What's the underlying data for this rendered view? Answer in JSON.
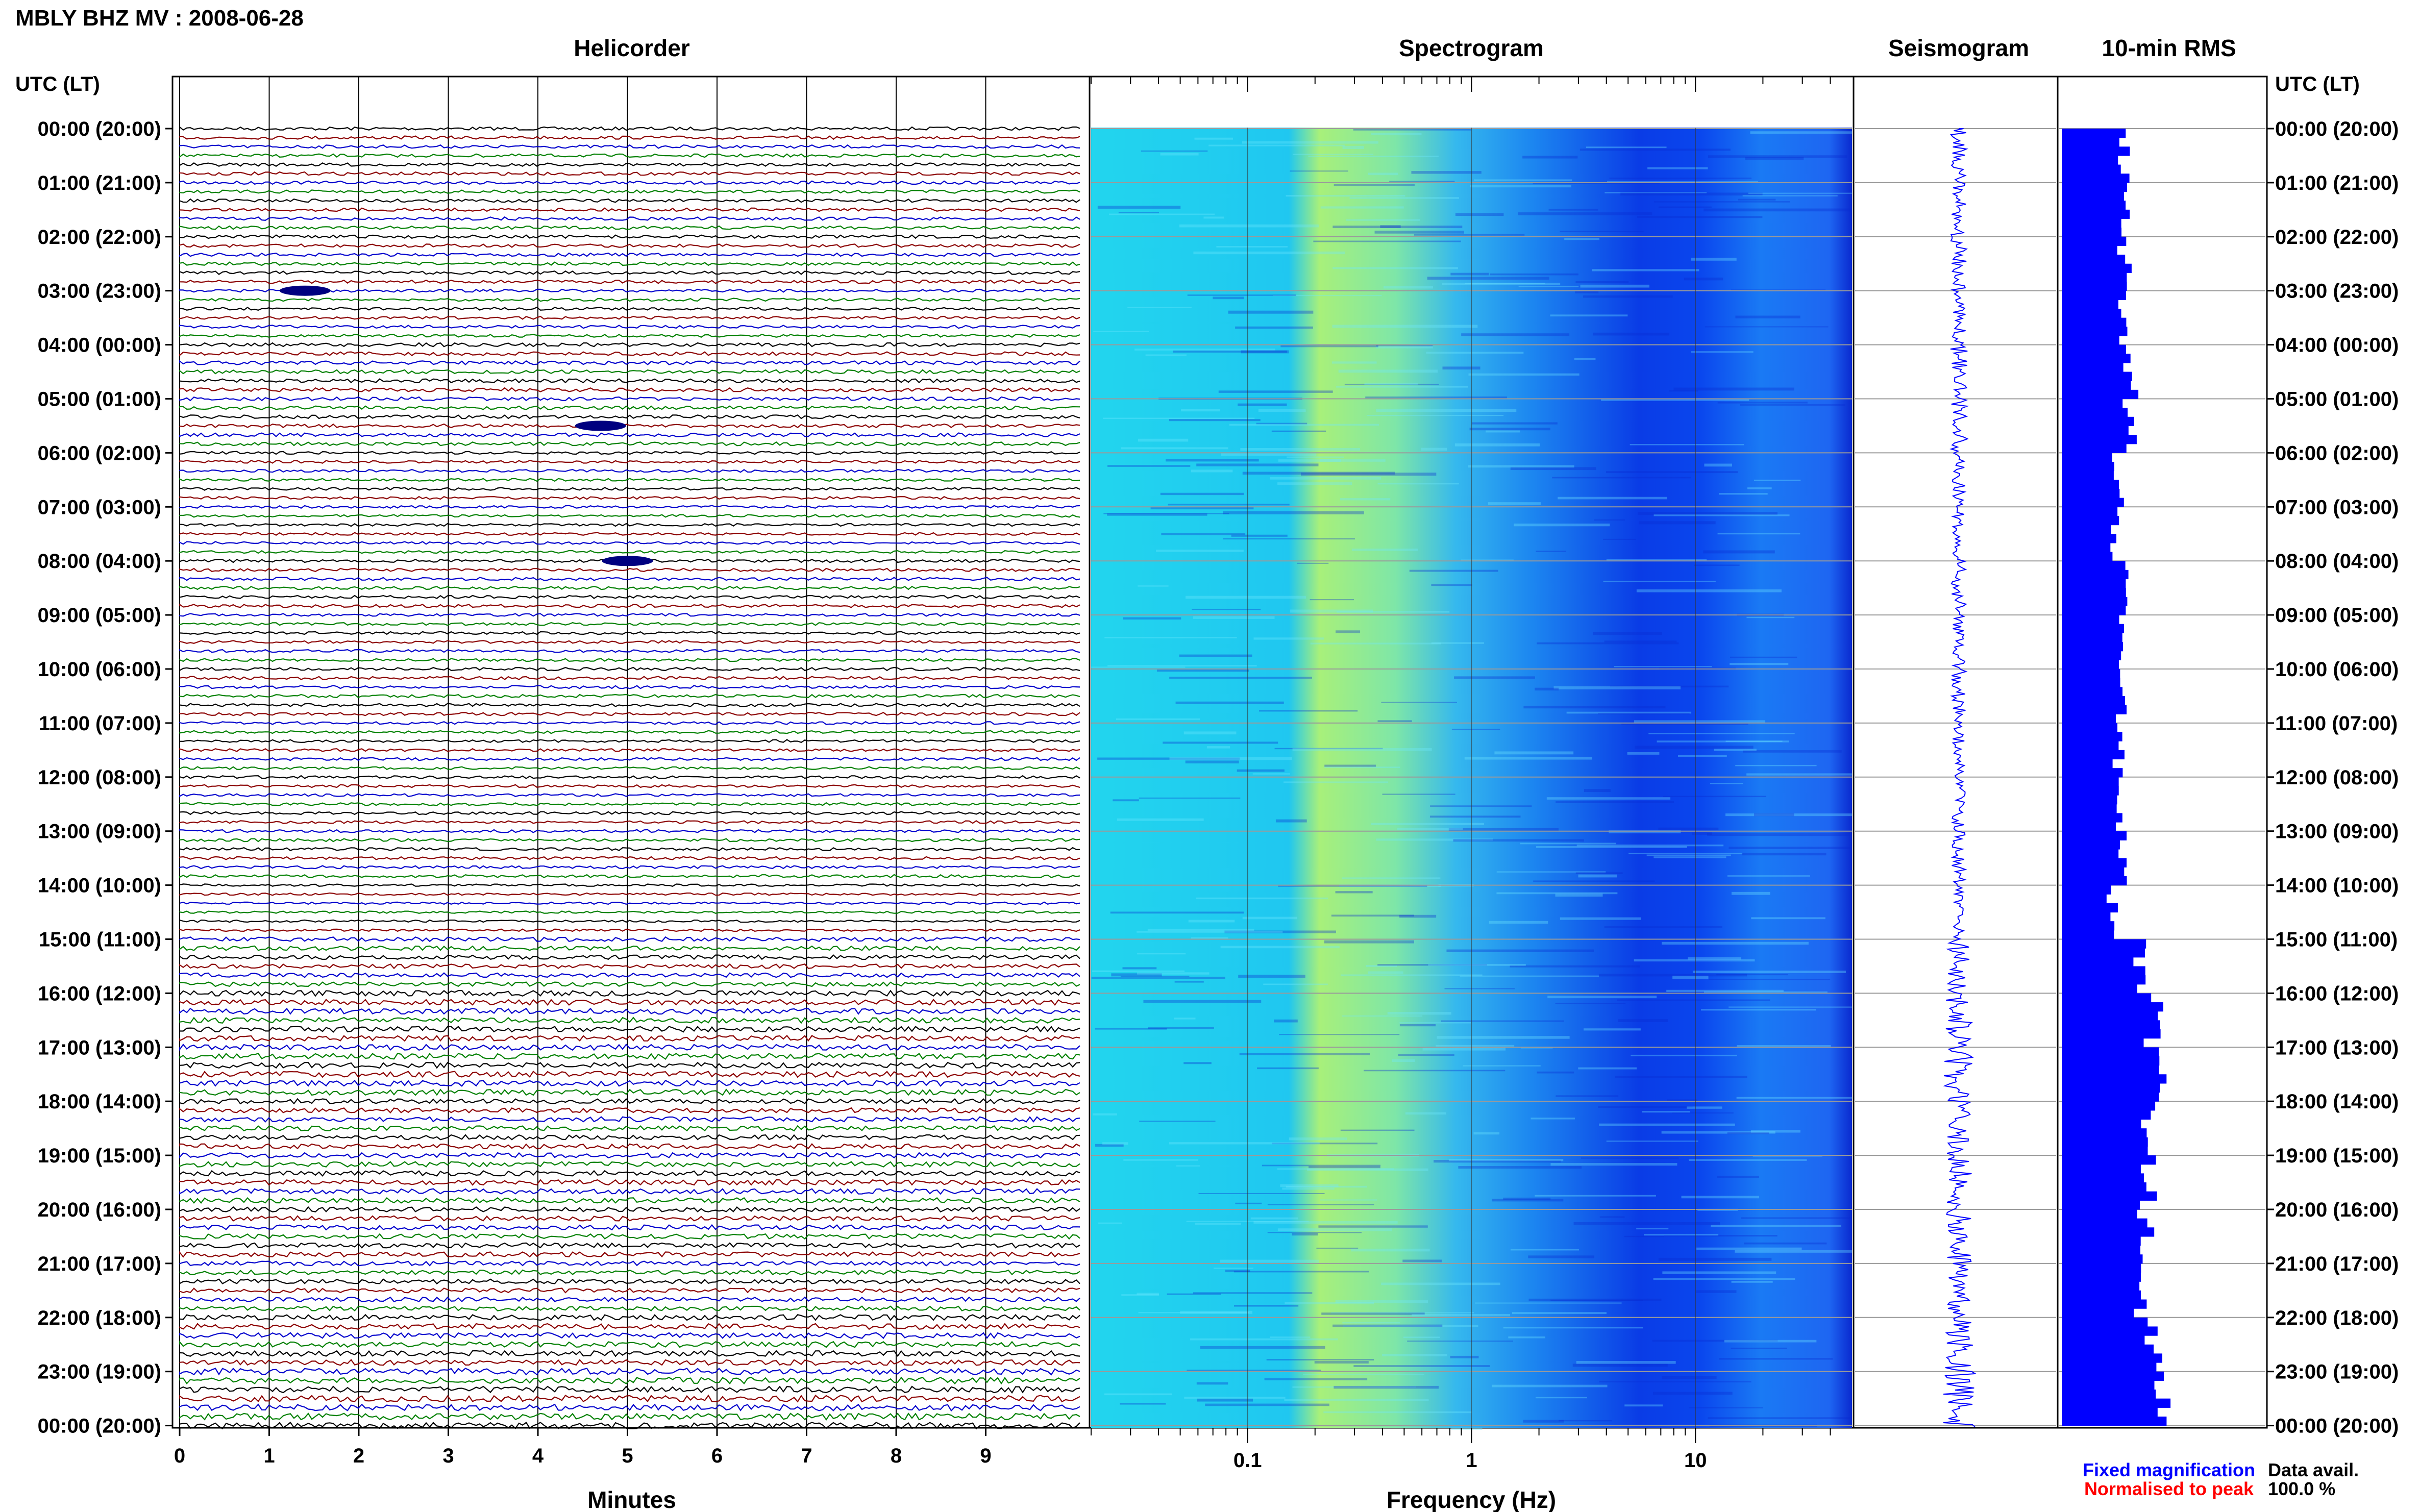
{
  "header": {
    "title": "MBLY BHZ MV : 2008-06-28"
  },
  "panels": {
    "helicorder": "Helicorder",
    "spectrogram": "Spectrogram",
    "seismogram": "Seismogram",
    "rms": "10-min RMS"
  },
  "axes": {
    "time_label_left": "UTC (LT)",
    "time_label_right": "UTC (LT)",
    "helicorder_xlabel": "Minutes",
    "spectrogram_xlabel": "Frequency (Hz)",
    "hours": [
      "00:00 (20:00)",
      "01:00 (21:00)",
      "02:00 (22:00)",
      "03:00 (23:00)",
      "04:00 (00:00)",
      "05:00 (01:00)",
      "06:00 (02:00)",
      "07:00 (03:00)",
      "08:00 (04:00)",
      "09:00 (05:00)",
      "10:00 (06:00)",
      "11:00 (07:00)",
      "12:00 (08:00)",
      "13:00 (09:00)",
      "14:00 (10:00)",
      "15:00 (11:00)",
      "16:00 (12:00)",
      "17:00 (13:00)",
      "18:00 (14:00)",
      "19:00 (15:00)",
      "20:00 (16:00)",
      "21:00 (17:00)",
      "22:00 (18:00)",
      "23:00 (19:00)",
      "00:00 (20:00)"
    ],
    "minute_ticks": [
      "0",
      "1",
      "2",
      "3",
      "4",
      "5",
      "6",
      "7",
      "8",
      "9"
    ],
    "freq_ticks": [
      "0.1",
      "1",
      "10"
    ]
  },
  "legend": {
    "fixed": "Fixed magnification",
    "normalised": "Normalised to peak",
    "fixed_color": "#0000ff",
    "normalised_color": "#ff0000"
  },
  "availability": {
    "label": "Data avail.",
    "value": "100.0 %"
  },
  "colors": {
    "trace_cycle": [
      "#000000",
      "#8b0000",
      "#0000cd",
      "#008000"
    ],
    "rms_fill": "#0000ff",
    "seismogram": "#0000ff"
  },
  "chart_data": [
    {
      "type": "line",
      "panel": "helicorder",
      "xlabel": "Minutes",
      "xlim": [
        0,
        10
      ],
      "lines_per_hour": 6,
      "hours": 24,
      "events": [
        {
          "hour_decimal": 3.0,
          "minute": 1.4
        },
        {
          "hour_decimal": 5.5,
          "minute": 4.7
        },
        {
          "hour_decimal": 8.0,
          "minute": 5.0
        }
      ]
    },
    {
      "type": "heatmap",
      "panel": "spectrogram",
      "xlabel": "Frequency (Hz)",
      "x_scale": "log",
      "xlim": [
        0.02,
        50
      ],
      "colormap": [
        "#0000ff",
        "#00bfff",
        "#7fffd4",
        "#ffff80"
      ]
    },
    {
      "type": "line",
      "panel": "seismogram",
      "orientation": "vertical"
    },
    {
      "type": "bar",
      "panel": "rms",
      "orientation": "horizontal",
      "bins_per_hour": 6,
      "hourly_relative_values": [
        0.3,
        0.3,
        0.3,
        0.28,
        0.33,
        0.32,
        0.27,
        0.26,
        0.29,
        0.27,
        0.29,
        0.27,
        0.27,
        0.28,
        0.24,
        0.37,
        0.44,
        0.45,
        0.4,
        0.42,
        0.4,
        0.38,
        0.44,
        0.49
      ]
    }
  ]
}
